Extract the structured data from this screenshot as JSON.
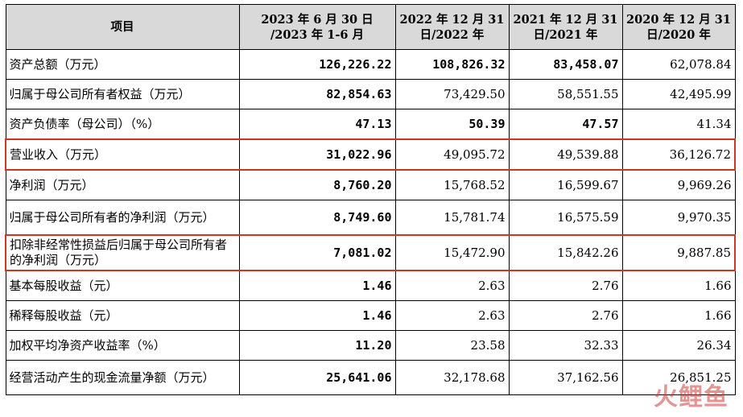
{
  "header": {
    "item": "项目",
    "col1_line1": "2023 年 6 月 30 日",
    "col1_line2": "/2023 年 1-6 月",
    "col2_line1": "2022 年 12 月 31",
    "col2_line2": "日/2022 年",
    "col3_line1": "2021 年 12 月 31",
    "col3_line2": "日/2021 年",
    "col4_line1": "2020 年 12 月 31",
    "col4_line2": "日/2020 年"
  },
  "rows": [
    {
      "label": "资产总额（万元）",
      "v1": "126,226.22",
      "v2": "108,826.32",
      "v3": "83,458.07",
      "v4": "62,078.84"
    },
    {
      "label": "归属于母公司所有者权益（万元）",
      "v1": "82,854.63",
      "v2": "73,429.50",
      "v3": "58,551.55",
      "v4": "42,495.99"
    },
    {
      "label": "资产负债率（母公司）（%）",
      "v1": "47.13",
      "v2": "50.39",
      "v3": "47.57",
      "v4": "41.34"
    },
    {
      "label": "营业收入（万元）",
      "v1": "31,022.96",
      "v2": "49,095.72",
      "v3": "49,539.88",
      "v4": "36,126.72"
    },
    {
      "label": "净利润（万元）",
      "v1": "8,760.20",
      "v2": "15,768.52",
      "v3": "16,599.67",
      "v4": "9,969.26"
    },
    {
      "label": "归属于母公司所有者的净利润（万元）",
      "v1": "8,749.60",
      "v2": "15,781.74",
      "v3": "16,575.59",
      "v4": "9,970.35"
    },
    {
      "label": "扣除非经常性损益后归属于母公司所有者的净利润（万元）",
      "v1": "7,081.02",
      "v2": "15,472.90",
      "v3": "15,842.26",
      "v4": "9,887.85"
    },
    {
      "label": "基本每股收益（元）",
      "v1": "1.46",
      "v2": "2.63",
      "v3": "2.76",
      "v4": "1.66"
    },
    {
      "label": "稀释每股收益（元）",
      "v1": "1.46",
      "v2": "2.63",
      "v3": "2.76",
      "v4": "1.66"
    },
    {
      "label": "加权平均净资产收益率（%）",
      "v1": "11.20",
      "v2": "23.58",
      "v3": "32.33",
      "v4": "26.34"
    },
    {
      "label": "经营活动产生的现金流量净额（万元）",
      "v1": "25,641.06",
      "v2": "32,178.68",
      "v3": "37,162.56",
      "v4": "26,851.25"
    }
  ],
  "watermark": "火鲤鱼",
  "colors": {
    "header_bg": "#d9d9d9",
    "highlight_border": "#d0351f"
  }
}
